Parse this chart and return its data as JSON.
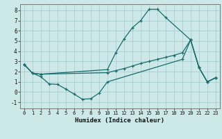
{
  "xlabel": "Humidex (Indice chaleur)",
  "bg_color": "#cce8e8",
  "grid_color": "#aacece",
  "line_color": "#1a6b6b",
  "xlim": [
    -0.5,
    23.5
  ],
  "ylim": [
    -1.6,
    8.6
  ],
  "xticks": [
    0,
    1,
    2,
    3,
    4,
    5,
    6,
    7,
    8,
    9,
    10,
    11,
    12,
    13,
    14,
    15,
    16,
    17,
    18,
    19,
    20,
    21,
    22,
    23
  ],
  "yticks": [
    -1,
    0,
    1,
    2,
    3,
    4,
    5,
    6,
    7,
    8
  ],
  "line1_x": [
    0,
    1,
    2,
    10,
    11,
    12,
    13,
    14,
    15,
    16,
    17,
    20,
    21,
    22,
    23
  ],
  "line1_y": [
    2.7,
    1.85,
    1.75,
    2.2,
    3.85,
    5.2,
    6.3,
    7.0,
    8.1,
    8.1,
    7.3,
    5.1,
    2.4,
    1.0,
    1.4
  ],
  "line2_x": [
    0,
    1,
    2,
    10,
    11,
    12,
    13,
    14,
    15,
    16,
    17,
    18,
    19,
    20,
    21,
    22,
    23
  ],
  "line2_y": [
    2.7,
    1.85,
    1.75,
    1.9,
    2.1,
    2.3,
    2.55,
    2.8,
    3.0,
    3.2,
    3.4,
    3.6,
    3.85,
    5.1,
    2.4,
    1.0,
    1.4
  ],
  "line3_x": [
    0,
    1,
    2,
    3,
    4,
    5,
    6,
    7,
    8,
    9,
    10,
    19,
    20,
    21,
    22,
    23
  ],
  "line3_y": [
    2.7,
    1.85,
    1.5,
    0.8,
    0.75,
    0.3,
    -0.2,
    -0.7,
    -0.65,
    -0.1,
    1.0,
    3.2,
    5.1,
    2.4,
    1.0,
    1.4
  ]
}
